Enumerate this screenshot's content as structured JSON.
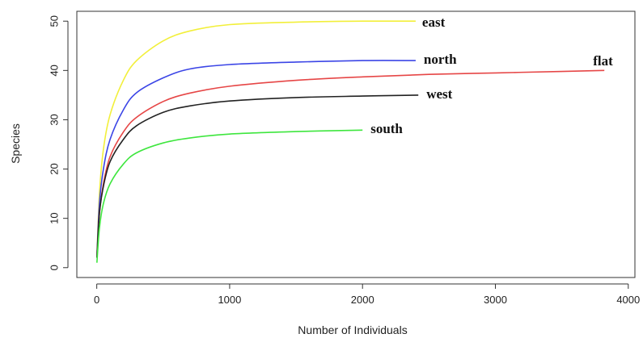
{
  "chart_data": {
    "type": "line",
    "title": "",
    "xlabel": "Number of Individuals",
    "ylabel": "Species",
    "xlim": [
      -150,
      4050
    ],
    "ylim": [
      -2,
      52
    ],
    "xticks": [
      "0",
      "1000",
      "2000",
      "3000",
      "4000"
    ],
    "yticks": [
      "0",
      "10",
      "20",
      "30",
      "40",
      "50"
    ],
    "grid": false,
    "legend": "none",
    "series": [
      {
        "name": "east",
        "color": "#f2ef3a",
        "x": [
          1,
          20,
          50,
          100,
          200,
          300,
          500,
          700,
          1000,
          1500,
          2000,
          2400
        ],
        "y": [
          2,
          15,
          24,
          31,
          38,
          42,
          46,
          48,
          49.3,
          49.8,
          50,
          50
        ]
      },
      {
        "name": "north",
        "color": "#3b45e6",
        "x": [
          1,
          20,
          50,
          100,
          200,
          300,
          500,
          700,
          1000,
          1500,
          2000,
          2400
        ],
        "y": [
          2,
          13,
          20,
          26,
          32,
          35.5,
          38.5,
          40.3,
          41.2,
          41.7,
          42,
          42
        ]
      },
      {
        "name": "flat",
        "color": "#e64646",
        "x": [
          1,
          20,
          50,
          100,
          200,
          300,
          500,
          700,
          1000,
          1500,
          2000,
          2500,
          3000,
          3500,
          3820
        ],
        "y": [
          2,
          11,
          17,
          22.5,
          27.5,
          30.5,
          33.7,
          35.4,
          36.8,
          38,
          38.7,
          39.2,
          39.5,
          39.8,
          40
        ]
      },
      {
        "name": "west",
        "color": "#222222",
        "x": [
          1,
          20,
          50,
          100,
          200,
          300,
          500,
          700,
          1000,
          1500,
          2000,
          2420
        ],
        "y": [
          2,
          11,
          16.5,
          21.5,
          26,
          28.8,
          31.5,
          32.8,
          33.8,
          34.5,
          34.8,
          35
        ]
      },
      {
        "name": "south",
        "color": "#3ee63e",
        "x": [
          1,
          20,
          50,
          100,
          200,
          300,
          500,
          700,
          1000,
          1500,
          2000
        ],
        "y": [
          1,
          8,
          13,
          17,
          21,
          23.3,
          25.3,
          26.3,
          27.1,
          27.6,
          27.9
        ]
      }
    ]
  }
}
